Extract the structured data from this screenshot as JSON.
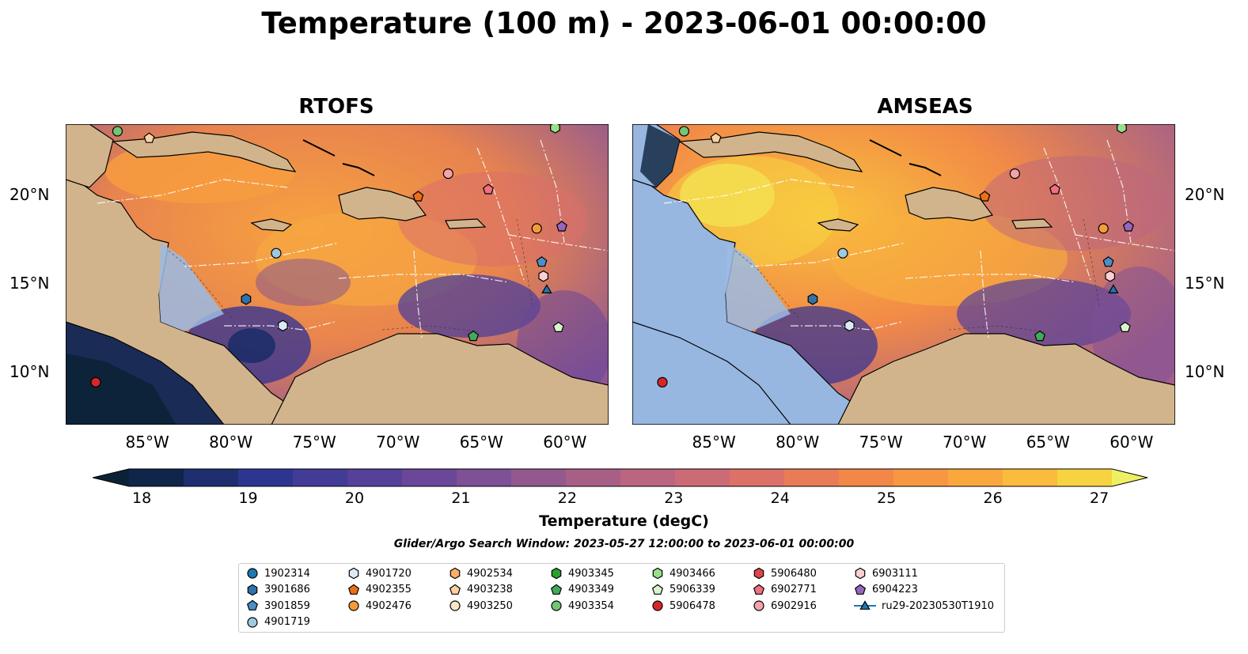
{
  "title": "Temperature (100 m) - 2023-06-01 00:00:00",
  "panels": [
    {
      "name": "RTOFS"
    },
    {
      "name": "AMSEAS"
    }
  ],
  "axes": {
    "lon_ticks": [
      "85°W",
      "80°W",
      "75°W",
      "70°W",
      "65°W",
      "60°W"
    ],
    "lat_ticks": [
      "20°N",
      "15°N",
      "10°N"
    ]
  },
  "colorbar": {
    "label": "Temperature (degC)",
    "ticks": [
      "18",
      "19",
      "20",
      "21",
      "22",
      "23",
      "24",
      "25",
      "26",
      "27"
    ],
    "colors": [
      "#0b2236",
      "#10254a",
      "#1e2e6e",
      "#2e3590",
      "#433c96",
      "#56409a",
      "#6a4798",
      "#7e5096",
      "#93598f",
      "#a85f86",
      "#bb6680",
      "#cb6b76",
      "#dc7168",
      "#e97b57",
      "#f28747",
      "#f79742",
      "#faa83e",
      "#fbbb3c",
      "#f8d341",
      "#eef063"
    ]
  },
  "search_window": "Glider/Argo Search Window: 2023-05-27 12:00:00 to 2023-06-01 00:00:00",
  "legend": {
    "columns": [
      [
        {
          "label": "1902314",
          "shape": "circle",
          "color": "#1f77b4"
        },
        {
          "label": "3901686",
          "shape": "hexagon",
          "color": "#2f73a8"
        },
        {
          "label": "3901859",
          "shape": "pentagon",
          "color": "#4a8fc9"
        },
        {
          "label": "4901719",
          "shape": "circle",
          "color": "#9ecae1"
        }
      ],
      [
        {
          "label": "4901720",
          "shape": "hexagon",
          "color": "#dbe9f6"
        },
        {
          "label": "4902355",
          "shape": "pentagon",
          "color": "#ec7014"
        },
        {
          "label": "4902476",
          "shape": "circle",
          "color": "#f59b3a"
        }
      ],
      [
        {
          "label": "4902534",
          "shape": "hexagon",
          "color": "#fdae6b"
        },
        {
          "label": "4903238",
          "shape": "pentagon",
          "color": "#fdd0a2"
        },
        {
          "label": "4903250",
          "shape": "circle",
          "color": "#fde5cc"
        }
      ],
      [
        {
          "label": "4903345",
          "shape": "hexagon",
          "color": "#2ca02c"
        },
        {
          "label": "4903349",
          "shape": "pentagon",
          "color": "#41ab5d"
        },
        {
          "label": "4903354",
          "shape": "circle",
          "color": "#74c476"
        }
      ],
      [
        {
          "label": "4903466",
          "shape": "hexagon",
          "color": "#98df8a"
        },
        {
          "label": "5906339",
          "shape": "pentagon",
          "color": "#d9f5d0"
        },
        {
          "label": "5906478",
          "shape": "circle",
          "color": "#d62728"
        }
      ],
      [
        {
          "label": "5906480",
          "shape": "hexagon",
          "color": "#e0454a"
        },
        {
          "label": "6902771",
          "shape": "pentagon",
          "color": "#f07080"
        },
        {
          "label": "6902916",
          "shape": "circle",
          "color": "#f4a3a8"
        }
      ],
      [
        {
          "label": "6903111",
          "shape": "hexagon",
          "color": "#fbd0d4"
        },
        {
          "label": "6904223",
          "shape": "pentagon",
          "color": "#9467bd"
        },
        {
          "label": "ru29-20230530T1910",
          "shape": "triangle-line",
          "color": "#1f77b4"
        }
      ]
    ]
  },
  "markers": [
    {
      "id": "4903354",
      "shape": "circle",
      "color": "#74c476",
      "lon": -86.9,
      "lat": 23.6
    },
    {
      "id": "4903238",
      "shape": "pentagon",
      "color": "#fdd0a2",
      "lon": -85.0,
      "lat": 23.2
    },
    {
      "id": "4903466",
      "shape": "hexagon",
      "color": "#98df8a",
      "lon": -60.7,
      "lat": 23.8
    },
    {
      "id": "6902916",
      "shape": "circle",
      "color": "#f4a3a8",
      "lon": -67.1,
      "lat": 21.2
    },
    {
      "id": "6902771",
      "shape": "pentagon",
      "color": "#f07080",
      "lon": -64.7,
      "lat": 20.3
    },
    {
      "id": "4902355",
      "shape": "pentagon",
      "color": "#ec7014",
      "lon": -68.9,
      "lat": 19.9
    },
    {
      "id": "4902476",
      "shape": "circle",
      "color": "#f59b3a",
      "lon": -61.8,
      "lat": 18.1
    },
    {
      "id": "6904223",
      "shape": "pentagon",
      "color": "#9467bd",
      "lon": -60.3,
      "lat": 18.2
    },
    {
      "id": "4901719",
      "shape": "circle",
      "color": "#9ecae1",
      "lon": -77.4,
      "lat": 16.7
    },
    {
      "id": "3901859",
      "shape": "pentagon",
      "color": "#4a8fc9",
      "lon": -61.5,
      "lat": 16.2
    },
    {
      "id": "6903111",
      "shape": "hexagon",
      "color": "#fbd0d4",
      "lon": -61.4,
      "lat": 15.4
    },
    {
      "id": "ru29-20230530T1910",
      "shape": "triangle",
      "color": "#1f77b4",
      "lon": -61.2,
      "lat": 14.6
    },
    {
      "id": "3901686",
      "shape": "hexagon",
      "color": "#2f73a8",
      "lon": -79.2,
      "lat": 14.1
    },
    {
      "id": "4901720",
      "shape": "hexagon",
      "color": "#dbe9f6",
      "lon": -77.0,
      "lat": 12.6
    },
    {
      "id": "4903349",
      "shape": "pentagon",
      "color": "#41ab5d",
      "lon": -65.6,
      "lat": 12.0
    },
    {
      "id": "5906339",
      "shape": "pentagon",
      "color": "#d9f5d0",
      "lon": -60.5,
      "lat": 12.5
    },
    {
      "id": "5906478",
      "shape": "circle",
      "color": "#d62728",
      "lon": -88.2,
      "lat": 9.4
    }
  ]
}
